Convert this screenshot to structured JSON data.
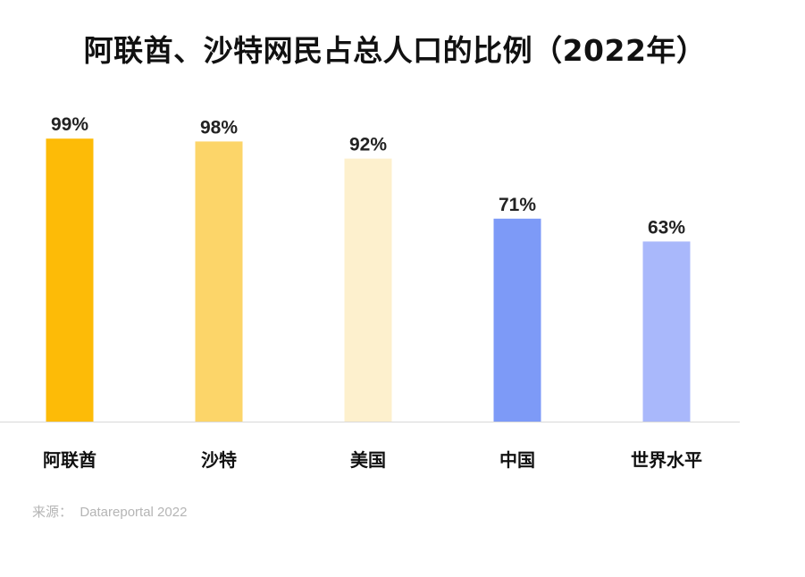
{
  "chart_data": {
    "type": "bar",
    "title": "阿联酋、沙特网民占总人口的比例（2022年）",
    "categories": [
      "阿联酋",
      "沙特",
      "美国",
      "中国",
      "世界水平"
    ],
    "values": [
      99,
      98,
      92,
      71,
      63
    ],
    "value_labels": [
      "99%",
      "98%",
      "92%",
      "71%",
      "63%"
    ],
    "colors": [
      "#FDBB07",
      "#FCD569",
      "#FDF0CD",
      "#7D9AF7",
      "#A9B8FB"
    ],
    "ylim": [
      0,
      100
    ],
    "grid": false,
    "legend": "none"
  },
  "source": "来源：  Datareportal 2022"
}
